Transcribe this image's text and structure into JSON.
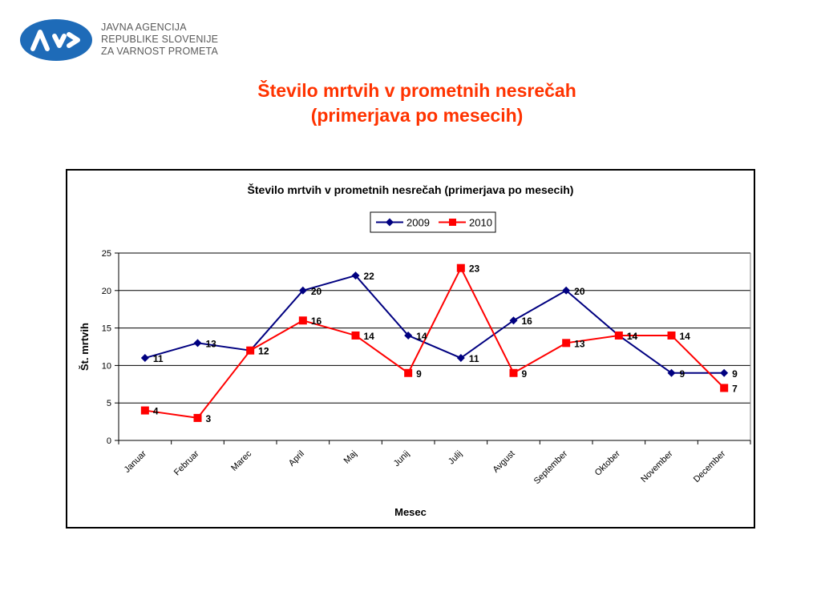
{
  "logo": {
    "mark_text": "AVP",
    "lines": [
      "JAVNA AGENCIJA",
      "REPUBLIKE SLOVENIJE",
      "ZA VARNOST PROMETA"
    ],
    "color": "#1e6bb8"
  },
  "slide": {
    "title_line1": "Število mrtvih v prometnih nesrečah",
    "title_line2": "(primerjava po mesecih)",
    "title_color": "#ff3300"
  },
  "chart_data": {
    "type": "line",
    "title": "Število mrtvih v prometnih nesrečah (primerjava po mesecih)",
    "xlabel": "Mesec",
    "ylabel": "Št. mrtvih",
    "categories": [
      "Januar",
      "Februar",
      "Marec",
      "April",
      "Maj",
      "Junij",
      "Julij",
      "Avgust",
      "September",
      "Oktober",
      "November",
      "December"
    ],
    "ylim": [
      0,
      25
    ],
    "yticks": [
      "0",
      "5",
      "10",
      "15",
      "20",
      "25"
    ],
    "grid": true,
    "legend_position": "top-center",
    "series": [
      {
        "name": "2009",
        "color": "#000080",
        "marker": "diamond",
        "values": [
          11,
          13,
          12,
          20,
          22,
          14,
          11,
          16,
          20,
          14,
          9,
          9
        ]
      },
      {
        "name": "2010",
        "color": "#ff0000",
        "marker": "square",
        "values": [
          4,
          3,
          12,
          16,
          14,
          9,
          23,
          9,
          13,
          14,
          14,
          7
        ]
      }
    ]
  }
}
